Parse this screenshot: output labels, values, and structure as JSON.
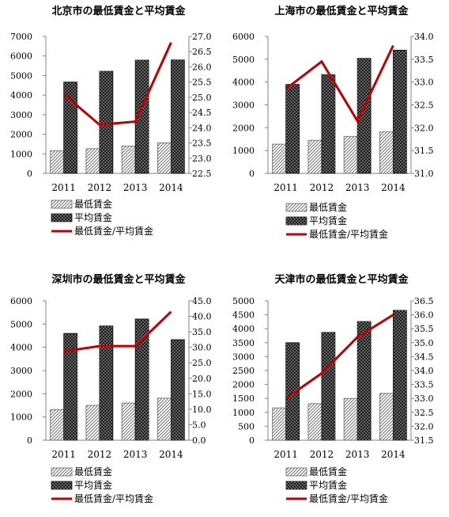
{
  "chart_data": [
    {
      "type": "bar",
      "title": "北京市の最低賃金と平均賃金",
      "categories": [
        "2011",
        "2012",
        "2013",
        "2014"
      ],
      "series": [
        {
          "name": "最低賃金",
          "axis": "left",
          "kind": "bar",
          "pattern": "hatch",
          "values": [
            1160,
            1260,
            1400,
            1560
          ]
        },
        {
          "name": "平均賃金",
          "axis": "left",
          "kind": "bar",
          "pattern": "dots",
          "values": [
            4670,
            5220,
            5790,
            5800
          ]
        },
        {
          "name": "最低賃金/平均賃金",
          "axis": "right",
          "kind": "line",
          "color": "#c00000",
          "values": [
            25.1,
            24.1,
            24.2,
            26.8
          ]
        }
      ],
      "ylim": [
        0,
        7000
      ],
      "yticks": [
        "0",
        "1000",
        "2000",
        "3000",
        "4000",
        "5000",
        "6000",
        "7000"
      ],
      "y2lim": [
        22.5,
        27.0
      ],
      "y2ticks": [
        "22.5",
        "23.0",
        "23.5",
        "24.0",
        "24.5",
        "25.0",
        "25.5",
        "26.0",
        "26.5",
        "27.0"
      ],
      "legend": "bottom"
    },
    {
      "type": "bar",
      "title": "上海市の最低賃金と平均賃金",
      "categories": [
        "2011",
        "2012",
        "2013",
        "2014"
      ],
      "series": [
        {
          "name": "最低賃金",
          "axis": "left",
          "kind": "bar",
          "pattern": "hatch",
          "values": [
            1280,
            1450,
            1620,
            1820
          ]
        },
        {
          "name": "平均賃金",
          "axis": "left",
          "kind": "bar",
          "pattern": "dots",
          "values": [
            3900,
            4330,
            5040,
            5400
          ]
        },
        {
          "name": "最低賃金/平均賃金",
          "axis": "right",
          "kind": "line",
          "color": "#c00000",
          "values": [
            32.85,
            33.45,
            32.15,
            33.8
          ]
        }
      ],
      "ylim": [
        0,
        6000
      ],
      "yticks": [
        "0",
        "1000",
        "2000",
        "3000",
        "4000",
        "5000",
        "6000"
      ],
      "y2lim": [
        31.0,
        34.0
      ],
      "y2ticks": [
        "31.0",
        "31.5",
        "32.0",
        "32.5",
        "33.0",
        "33.5",
        "34.0"
      ],
      "legend": "bottom"
    },
    {
      "type": "bar",
      "title": "深圳市の最低賃金と平均賃金",
      "categories": [
        "2011",
        "2012",
        "2013",
        "2014"
      ],
      "series": [
        {
          "name": "最低賃金",
          "axis": "left",
          "kind": "bar",
          "pattern": "hatch",
          "values": [
            1320,
            1500,
            1600,
            1810
          ]
        },
        {
          "name": "平均賃金",
          "axis": "left",
          "kind": "bar",
          "pattern": "dots",
          "values": [
            4600,
            4920,
            5220,
            4330
          ]
        },
        {
          "name": "最低賃金/平均賃金",
          "axis": "right",
          "kind": "line",
          "color": "#c00000",
          "values": [
            28.7,
            30.4,
            30.4,
            41.5
          ]
        }
      ],
      "ylim": [
        0,
        6000
      ],
      "yticks": [
        "0",
        "1000",
        "2000",
        "3000",
        "4000",
        "5000",
        "6000"
      ],
      "y2lim": [
        0.0,
        45.0
      ],
      "y2ticks": [
        "0.0",
        "5.0",
        "10.0",
        "15.0",
        "20.0",
        "25.0",
        "30.0",
        "35.0",
        "40.0",
        "45.0"
      ],
      "legend": "bottom"
    },
    {
      "type": "bar",
      "title": "天津市の最低賃金と平均賃金",
      "categories": [
        "2011",
        "2012",
        "2013",
        "2014"
      ],
      "series": [
        {
          "name": "最低賃金",
          "axis": "left",
          "kind": "bar",
          "pattern": "hatch",
          "values": [
            1160,
            1310,
            1500,
            1680
          ]
        },
        {
          "name": "平均賃金",
          "axis": "left",
          "kind": "bar",
          "pattern": "dots",
          "values": [
            3500,
            3870,
            4260,
            4660
          ]
        },
        {
          "name": "最低賃金/平均賃金",
          "axis": "right",
          "kind": "line",
          "color": "#c00000",
          "values": [
            33.0,
            33.9,
            35.2,
            36.0
          ]
        }
      ],
      "ylim": [
        0,
        5000
      ],
      "yticks": [
        "0",
        "500",
        "1000",
        "1500",
        "2000",
        "2500",
        "3000",
        "3500",
        "4000",
        "4500",
        "5000"
      ],
      "y2lim": [
        31.5,
        36.5
      ],
      "y2ticks": [
        "31.5",
        "32.0",
        "32.5",
        "33.0",
        "33.5",
        "34.0",
        "34.5",
        "35.0",
        "35.5",
        "36.0",
        "36.5"
      ],
      "legend": "bottom"
    }
  ]
}
